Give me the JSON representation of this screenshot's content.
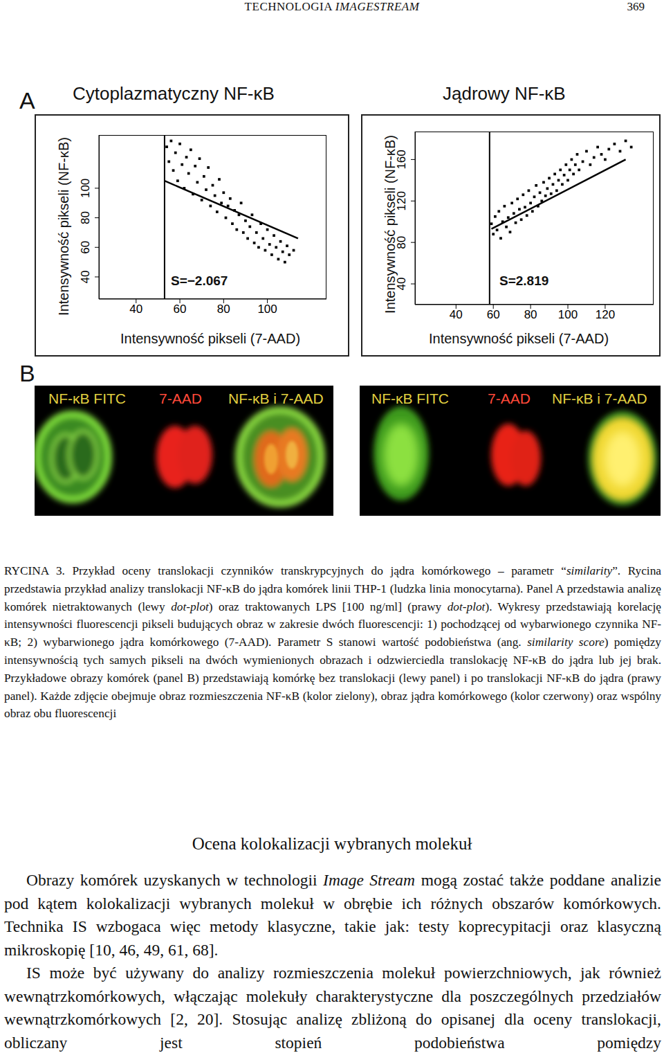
{
  "header": {
    "title": [
      "TECHNOLOGIA ",
      {
        "italic": "IMAGESTREAM"
      }
    ],
    "page": "369"
  },
  "chart_data": [
    {
      "type": "scatter",
      "title": "Cytoplazmatyczny NF-κB",
      "x_label": "Intensywność pikseli (7-AAD)",
      "y_label": "Intensywność pikseli (NF-κB)",
      "annotation": "S=−2.067",
      "color": "#000000",
      "marker": "square",
      "x": [
        54,
        55,
        56,
        57,
        58,
        59,
        60,
        61,
        62,
        63,
        64,
        65,
        66,
        67,
        68,
        69,
        70,
        71,
        72,
        73,
        74,
        75,
        76,
        77,
        78,
        79,
        80,
        81,
        82,
        83,
        84,
        85,
        86,
        87,
        88,
        89,
        90,
        91,
        92,
        93,
        94,
        95,
        96,
        97,
        98,
        99,
        100,
        101,
        102,
        103,
        104,
        105,
        106,
        107,
        108,
        109,
        110,
        112
      ],
      "y": [
        128,
        118,
        132,
        112,
        124,
        105,
        130,
        116,
        100,
        121,
        110,
        126,
        96,
        115,
        104,
        120,
        92,
        108,
        99,
        114,
        88,
        102,
        95,
        84,
        106,
        90,
        97,
        80,
        88,
        93,
        76,
        85,
        72,
        82,
        90,
        70,
        78,
        66,
        74,
        82,
        63,
        70,
        60,
        76,
        66,
        58,
        72,
        62,
        55,
        68,
        60,
        52,
        64,
        57,
        50,
        61,
        55,
        58
      ],
      "fit": {
        "x": [
          53,
          114
        ],
        "y": [
          105,
          66
        ]
      },
      "gate_x": 53,
      "xlim": [
        23,
        127
      ],
      "ylim": [
        25,
        136
      ],
      "xticks": [
        40,
        60,
        80,
        100
      ],
      "yticks": [
        40,
        60,
        80,
        100
      ]
    },
    {
      "type": "scatter",
      "title": "Jądrowy NF-κB",
      "x_label": "Intensywność pikseli (7-AAD)",
      "y_label": "Intensywność pikseli (NF-κB)",
      "annotation": "S=2.819",
      "color": "#000000",
      "marker": "square",
      "x": [
        59,
        60,
        61,
        62,
        63,
        64,
        65,
        66,
        67,
        68,
        69,
        70,
        71,
        72,
        73,
        74,
        75,
        76,
        77,
        78,
        79,
        80,
        81,
        82,
        83,
        84,
        85,
        86,
        87,
        88,
        89,
        90,
        91,
        92,
        93,
        94,
        95,
        96,
        97,
        98,
        99,
        100,
        101,
        102,
        103,
        104,
        105,
        106,
        108,
        110,
        112,
        114,
        116,
        118,
        120,
        122,
        125,
        128,
        131,
        134
      ],
      "y": [
        98,
        88,
        105,
        92,
        110,
        84,
        100,
        115,
        95,
        104,
        90,
        118,
        108,
        99,
        122,
        112,
        102,
        126,
        114,
        106,
        130,
        118,
        110,
        124,
        135,
        115,
        128,
        120,
        138,
        125,
        132,
        142,
        127,
        136,
        146,
        130,
        140,
        150,
        136,
        145,
        155,
        140,
        150,
        160,
        146,
        155,
        165,
        150,
        158,
        168,
        155,
        162,
        172,
        165,
        160,
        170,
        175,
        168,
        178,
        172
      ],
      "fit": {
        "x": [
          59,
          131
        ],
        "y": [
          93,
          160
        ]
      },
      "gate_x": 58,
      "xlim": [
        18,
        146
      ],
      "ylim": [
        20,
        187
      ],
      "xticks": [
        40,
        60,
        80,
        100,
        120
      ],
      "yticks": [
        40,
        80,
        120,
        160
      ]
    }
  ],
  "figure": {
    "panel_a": {
      "label": "A"
    },
    "panel_b": {
      "label": "B",
      "images": [
        {
          "labels": [
            "NF-κB FITC",
            "7-AAD",
            "NF-κB i 7-AAD"
          ]
        },
        {
          "labels": [
            "NF-κB FITC",
            "7-AAD",
            "NF-κB i 7-AAD"
          ]
        }
      ]
    },
    "caption": [
      "RYCINA 3. Przykład oceny translokacji czynników transkrypcyjnych do jądra komórkowego – parametr “",
      {
        "italic": "similarity"
      },
      "”. Rycina przedstawia przykład analizy translokacji NF-κB do jądra komórek linii THP-1 (ludzka linia monocytarna). Panel A przedstawia analizę komórek nietraktowanych (lewy ",
      {
        "italic": "dot-plot"
      },
      ") oraz traktowanych LPS [100 ng/ml] (prawy ",
      {
        "italic": "dot-plot"
      },
      "). Wykresy przedstawiają korelację intensywności fluorescencji pikseli budujących obraz w zakresie dwóch fluorescencji: 1) pochodzącej od wybarwionego czynnika NF-κB; 2) wybarwionego jądra komórkowego (7-AAD). Parametr S stanowi wartość podobieństwa (ang. ",
      {
        "italic": "similarity score"
      },
      ") pomiędzy intensywnością tych samych pikseli na dwóch wymienionych obrazach i odzwierciedla translokację NF-κB do jądra lub jej brak. Przykładowe obrazy komórek (panel B) przedstawiają komórkę bez translokacji (lewy panel) i po translokacji NF-κB do jądra (prawy panel). Każde zdjęcie obejmuje obraz rozmieszczenia NF-κB (kolor zielony), obraz jądra komórkowego (kolor czerwony) oraz wspólny obraz obu fluorescencji"
    ]
  },
  "section": {
    "heading": "Ocena kolokalizacji wybranych molekuł",
    "paragraphs": [
      [
        "Obrazy komórek uzyskanych w technologii ",
        {
          "italic": "Image Stream"
        },
        " mogą zostać także poddane analizie pod kątem kolokalizacji wybranych molekuł w obrębie ich różnych obszarów komórkowych. Technika IS wzbogaca więc metody klasyczne, takie jak: testy koprecypitacji oraz klasyczną mikroskopię [10, 46, 49, 61, 68]."
      ],
      [
        "IS może być używany do analizy rozmieszczenia molekuł powierzchniowych, jak również wewnątrzkomórkowych, włączając molekuły charakterystyczne dla poszczególnych przedziałów wewnątrzkomórkowych [2, 20]. Stosując analizę zbliżoną do opisanej dla oceny translokacji, obliczany jest stopień podobieństwa pomiędzy"
      ]
    ]
  }
}
